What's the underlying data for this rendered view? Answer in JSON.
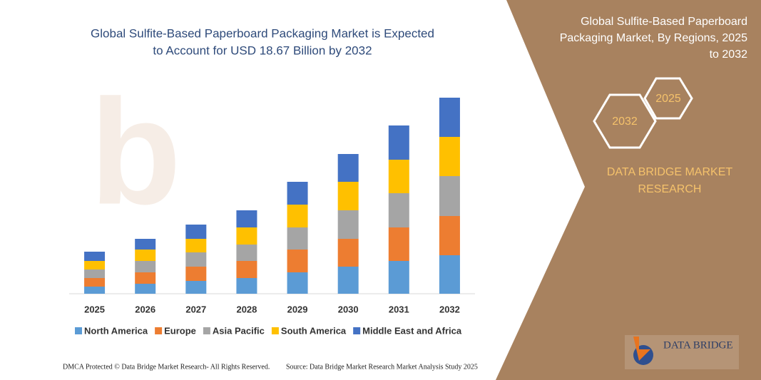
{
  "chart_data": {
    "type": "stacked_bar",
    "title": [
      "Global Sulfite-Based Paperboard Packaging Market is Expected",
      "to Account for USD 18.67 Billion by 2032"
    ],
    "categories": [
      "2025",
      "2026",
      "2027",
      "2028",
      "2029",
      "2030",
      "2031",
      "2032"
    ],
    "series": [
      {
        "name": "North America",
        "color": "#5b9bd5",
        "values": [
          10,
          14,
          18,
          22,
          30,
          38,
          46,
          54
        ]
      },
      {
        "name": "Europe",
        "color": "#ed7d31",
        "values": [
          12,
          16,
          20,
          24,
          32,
          39,
          47,
          55
        ]
      },
      {
        "name": "Asia Pacific",
        "color": "#a5a5a5",
        "values": [
          12,
          16,
          20,
          23,
          31,
          40,
          48,
          56
        ]
      },
      {
        "name": "South America",
        "color": "#ffc000",
        "values": [
          12,
          16,
          19,
          24,
          32,
          40,
          47,
          55
        ]
      },
      {
        "name": "Middle East and Africa",
        "color": "#4472c4",
        "values": [
          13,
          15,
          20,
          24,
          32,
          39,
          48,
          55
        ]
      }
    ]
  },
  "side_panel": {
    "title": [
      "Global Sulfite-Based Paperboard",
      "Packaging Market, By Regions, 2025",
      "to 2032"
    ],
    "hexagons": [
      "2025",
      "2032"
    ],
    "brand": [
      "DATA BRIDGE MARKET",
      "RESEARCH"
    ]
  },
  "logo": "DATA BRIDGE",
  "footer": {
    "left": "DMCA Protected © Data Bridge Market Research-  All Rights Reserved.",
    "right": "Source: Data Bridge Market Research  Market Analysis Study 2025"
  }
}
